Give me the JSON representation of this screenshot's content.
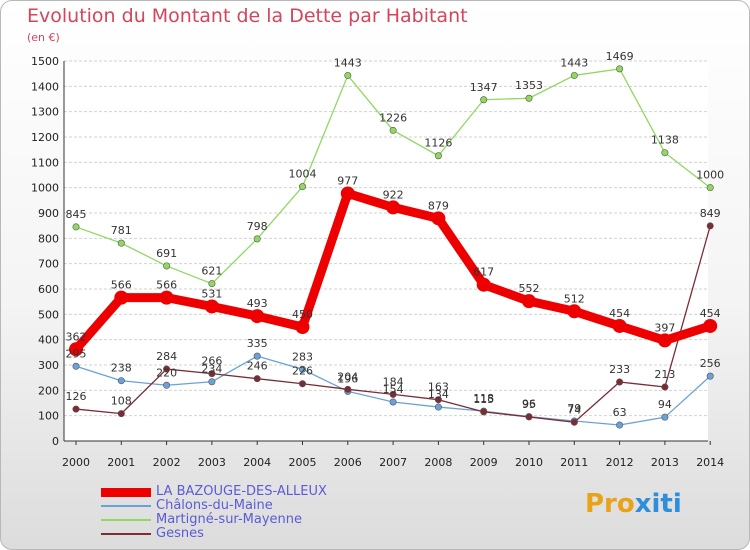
{
  "title": "Evolution du Montant de la Dette par Habitant",
  "subtitle": "(en €)",
  "brand": {
    "part1": "Pro",
    "part2": "xiti"
  },
  "chart_data": {
    "type": "line",
    "title": "Evolution du Montant de la Dette par Habitant",
    "ylabel": "(en €)",
    "x": [
      "2000",
      "2001",
      "2002",
      "2003",
      "2004",
      "2005",
      "2006",
      "2007",
      "2008",
      "2009",
      "2010",
      "2011",
      "2012",
      "2013",
      "2014"
    ],
    "ylim": [
      0,
      1500
    ],
    "yticks": [
      0,
      100,
      200,
      300,
      400,
      500,
      600,
      700,
      800,
      900,
      1000,
      1100,
      1200,
      1300,
      1400,
      1500
    ],
    "grid": true,
    "legend_position": "bottom-left",
    "series": [
      {
        "name": "LA BAZOUGE-DES-ALLEUX",
        "color": "#ee0000",
        "values": [
          362,
          566,
          566,
          531,
          493,
          450,
          977,
          922,
          879,
          617,
          552,
          512,
          454,
          397,
          454
        ]
      },
      {
        "name": "Châlons-du-Maine",
        "color": "#6aa2d8",
        "values": [
          295,
          238,
          220,
          234,
          335,
          283,
          196,
          154,
          134,
          118,
          96,
          79,
          63,
          94,
          256
        ]
      },
      {
        "name": "Martigné-sur-Mayenne",
        "color": "#90d860",
        "values": [
          845,
          781,
          691,
          621,
          798,
          1004,
          1443,
          1226,
          1126,
          1347,
          1353,
          1443,
          1469,
          1138,
          1000
        ]
      },
      {
        "name": "Gesnes",
        "color": "#7b2c36",
        "values": [
          126,
          108,
          284,
          266,
          246,
          226,
          204,
          184,
          163,
          115,
          95,
          74,
          233,
          213,
          849
        ]
      }
    ]
  }
}
